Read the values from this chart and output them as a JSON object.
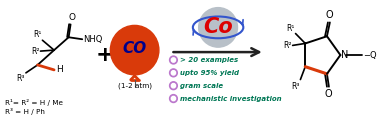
{
  "bg_color": "#ffffff",
  "arrow_color": "#222222",
  "balloon_color": "#d93a0a",
  "balloon_text": "CO",
  "balloon_text_color": "#00008b",
  "balloon_subtext": "(1-2 atm)",
  "co_catalyst_sphere_color": "#b8c0c8",
  "co_catalyst_text": "Co",
  "co_catalyst_text_color": "#dd0000",
  "co_orbit_color": "#3355cc",
  "bullet_color": "#bb77cc",
  "bullet_points": [
    "> 20 examples",
    "upto 95% yield",
    "gram scale",
    "mechanistic investigation"
  ],
  "bullet_text_color": "#007755",
  "red_bond_color": "#d93a0a",
  "r1r2_label": "R¹= R² = H / Me",
  "r3_label": "R³ = H / Ph"
}
